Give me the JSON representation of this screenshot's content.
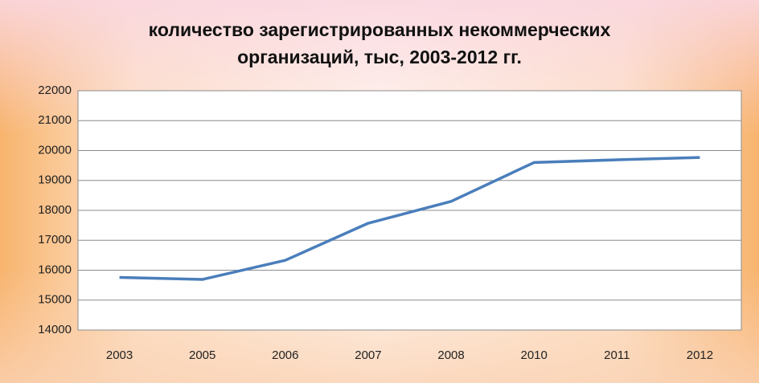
{
  "chart_data": {
    "type": "line",
    "title": "количество зарегистрированных некоммерческих организаций, тыс, 2003-2012 гг.",
    "categories": [
      "2003",
      "2005",
      "2006",
      "2007",
      "2008",
      "2010",
      "2011",
      "2012"
    ],
    "series": [
      {
        "color": "#4a7ebb",
        "values": [
          15760,
          15690,
          16330,
          17570,
          18300,
          19600,
          19690,
          19770
        ]
      }
    ],
    "ylim": [
      14000,
      22000
    ],
    "yticks": [
      14000,
      15000,
      16000,
      17000,
      18000,
      19000,
      20000,
      21000,
      22000
    ],
    "grid": true
  }
}
